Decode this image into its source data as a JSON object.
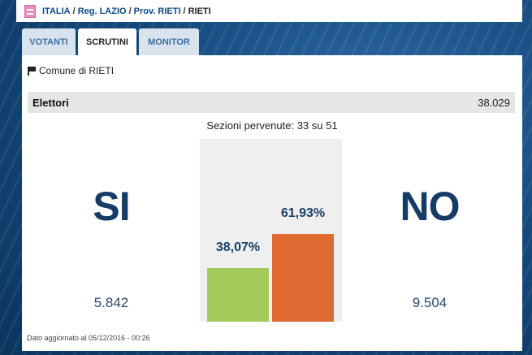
{
  "breadcrumb": {
    "items": [
      "ITALIA",
      "Reg. LAZIO",
      "Prov. RIETI"
    ],
    "current": "RIETI",
    "separator": "/"
  },
  "tabs": [
    {
      "label": "VOTANTI",
      "active": false
    },
    {
      "label": "SCRUTINI",
      "active": true
    },
    {
      "label": "MONITOR",
      "active": false
    }
  ],
  "comune": "Comune di RIETI",
  "elettori": {
    "label": "Elettori",
    "value": "38.029"
  },
  "sezioni": "Sezioni pervenute: 33 su 51",
  "results": {
    "si": {
      "label": "SI",
      "votes": "5.842",
      "percent_label": "38,07%",
      "percent": 38.07,
      "color": "#a3c95b"
    },
    "no": {
      "label": "NO",
      "votes": "9.504",
      "percent_label": "61,93%",
      "percent": 61.93,
      "color": "#e06a31"
    }
  },
  "updated": "Dato aggiornato al 05/12/2016 - 00:26",
  "colors": {
    "accent": "#0b4a8a",
    "headline": "#163b66"
  }
}
